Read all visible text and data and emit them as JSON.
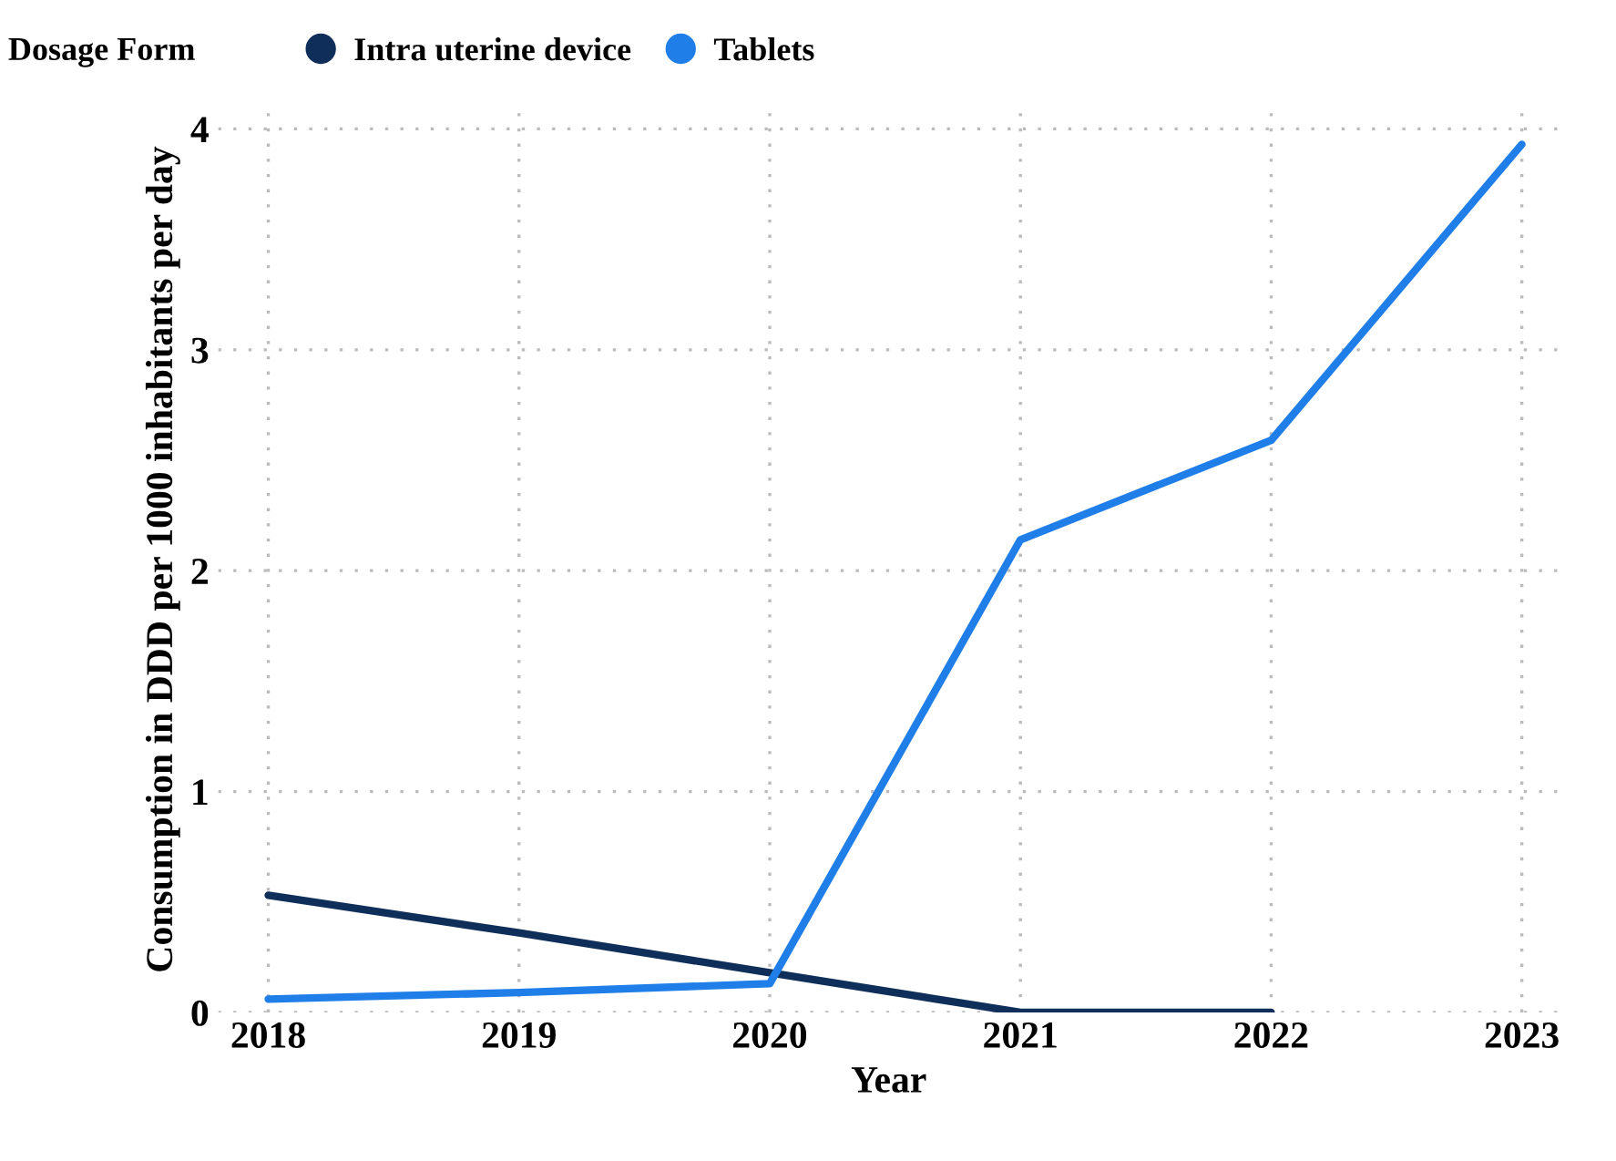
{
  "chart_data": {
    "type": "line",
    "xlabel": "Year",
    "ylabel": "Consumption in DDD per 1000 inhabitants per day",
    "legend_title": "Dosage Form",
    "x": [
      2018,
      2019,
      2020,
      2021,
      2022,
      2023
    ],
    "series": [
      {
        "name": "Intra uterine device",
        "color": "#0f2e5a",
        "values": [
          0.53,
          0.36,
          0.18,
          0.0,
          0.0,
          null
        ]
      },
      {
        "name": "Tablets",
        "color": "#1f7ee8",
        "values": [
          0.06,
          0.09,
          0.13,
          2.14,
          2.59,
          3.93
        ]
      }
    ],
    "xlim": [
      2017.8,
      2023.15
    ],
    "ylim": [
      0,
      4.1
    ],
    "xticks": [
      2018,
      2019,
      2020,
      2021,
      2022,
      2023
    ],
    "yticks": [
      0,
      1,
      2,
      3,
      4
    ],
    "grid": true,
    "legend": "top left",
    "marker": "none",
    "line_style": "solid"
  }
}
